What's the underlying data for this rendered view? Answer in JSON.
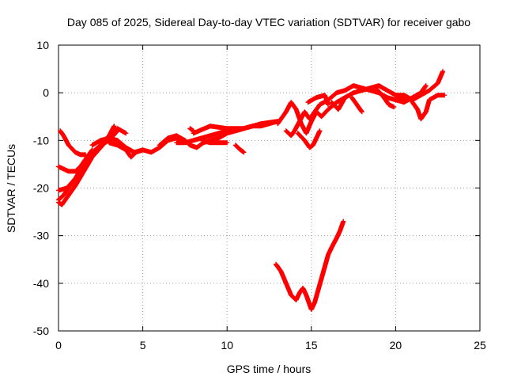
{
  "chart_data": {
    "type": "scatter",
    "title": "Day 085 of 2025, Sidereal Day-to-day VTEC variation (SDTVAR) for receiver gabo",
    "xlabel": "GPS time / hours",
    "ylabel": "SDTVAR / TECUs",
    "xlim": [
      0,
      25
    ],
    "ylim": [
      -50,
      10
    ],
    "xticks": [
      "0",
      "5",
      "10",
      "15",
      "20",
      "25"
    ],
    "yticks": [
      "10",
      "0",
      "-10",
      "-20",
      "-30",
      "-40",
      "-50"
    ],
    "grid": true,
    "marker": "plus",
    "marker_color": "#ff0000",
    "series": [
      {
        "name": "",
        "tracks": [
          [
            [
              0.0,
              -22.5
            ],
            [
              0.3,
              -21.5
            ],
            [
              0.6,
              -20.0
            ],
            [
              1.0,
              -18.0
            ],
            [
              1.5,
              -15.0
            ],
            [
              2.0,
              -12.5
            ],
            [
              2.5,
              -11.0
            ],
            [
              3.0,
              -10.0
            ],
            [
              3.5,
              -8.0
            ]
          ],
          [
            [
              0.0,
              -23.0
            ],
            [
              0.2,
              -23.5
            ],
            [
              0.5,
              -22.0
            ],
            [
              1.0,
              -19.5
            ],
            [
              1.5,
              -16.5
            ],
            [
              2.0,
              -13.5
            ],
            [
              2.5,
              -11.5
            ],
            [
              3.0,
              -9.5
            ],
            [
              3.5,
              -7.5
            ],
            [
              4.0,
              -8.5
            ]
          ],
          [
            [
              0.0,
              -20.5
            ],
            [
              0.5,
              -20.0
            ],
            [
              1.0,
              -18.0
            ],
            [
              1.5,
              -15.5
            ],
            [
              2.0,
              -13.0
            ],
            [
              2.5,
              -11.0
            ],
            [
              3.0,
              -9.0
            ],
            [
              3.3,
              -7.0
            ]
          ],
          [
            [
              0.0,
              -15.5
            ],
            [
              0.3,
              -16.0
            ],
            [
              0.6,
              -16.5
            ],
            [
              1.0,
              -16.5
            ],
            [
              1.3,
              -15.5
            ],
            [
              1.6,
              -14.0
            ],
            [
              2.0,
              -12.0
            ]
          ],
          [
            [
              0.1,
              -8.0
            ],
            [
              0.3,
              -9.0
            ],
            [
              0.6,
              -11.0
            ],
            [
              1.0,
              -12.5
            ],
            [
              1.3,
              -13.0
            ],
            [
              1.6,
              -13.0
            ]
          ],
          [
            [
              2.0,
              -11.0
            ],
            [
              2.5,
              -10.0
            ],
            [
              3.0,
              -9.5
            ],
            [
              3.5,
              -10.0
            ],
            [
              4.0,
              -11.5
            ],
            [
              4.5,
              -12.5
            ],
            [
              5.0,
              -12.0
            ],
            [
              5.5,
              -12.5
            ],
            [
              6.0,
              -11.5
            ],
            [
              6.5,
              -10.0
            ],
            [
              7.0,
              -9.5
            ],
            [
              7.5,
              -10.0
            ]
          ],
          [
            [
              3.0,
              -10.5
            ],
            [
              3.5,
              -11.0
            ],
            [
              4.0,
              -12.0
            ],
            [
              4.3,
              -13.5
            ],
            [
              4.6,
              -12.5
            ],
            [
              5.0,
              -12.0
            ]
          ],
          [
            [
              6.0,
              -11.0
            ],
            [
              6.5,
              -9.5
            ],
            [
              7.0,
              -9.0
            ],
            [
              7.5,
              -10.0
            ],
            [
              7.8,
              -11.0
            ],
            [
              8.2,
              -11.5
            ],
            [
              8.6,
              -10.5
            ],
            [
              9.0,
              -10.0
            ],
            [
              9.5,
              -9.5
            ],
            [
              10.0,
              -8.5
            ],
            [
              10.5,
              -8.0
            ],
            [
              11.0,
              -7.5
            ]
          ],
          [
            [
              7.0,
              -10.5
            ],
            [
              7.5,
              -10.5
            ],
            [
              8.0,
              -10.0
            ],
            [
              8.5,
              -9.5
            ],
            [
              9.0,
              -9.0
            ],
            [
              9.5,
              -8.5
            ],
            [
              10.0,
              -8.0
            ],
            [
              10.5,
              -8.0
            ],
            [
              11.0,
              -7.5
            ],
            [
              11.5,
              -7.0
            ],
            [
              12.0,
              -7.0
            ],
            [
              12.5,
              -6.5
            ],
            [
              13.0,
              -6.0
            ]
          ],
          [
            [
              8.0,
              -8.5
            ],
            [
              9.0,
              -7.0
            ],
            [
              10.0,
              -7.5
            ],
            [
              11.0,
              -7.5
            ],
            [
              12.0,
              -6.5
            ],
            [
              13.0,
              -6.0
            ]
          ],
          [
            [
              8.5,
              -10.0
            ],
            [
              9.0,
              -10.5
            ],
            [
              9.5,
              -10.5
            ],
            [
              10.0,
              -10.5
            ]
          ],
          [
            [
              10.5,
              -11.0
            ],
            [
              10.8,
              -12.0
            ],
            [
              11.0,
              -12.5
            ]
          ],
          [
            [
              7.8,
              -7.5
            ],
            [
              8.0,
              -8.0
            ]
          ],
          [
            [
              13.0,
              -6.5
            ],
            [
              13.5,
              -4.0
            ],
            [
              13.8,
              -2.0
            ],
            [
              14.1,
              -3.5
            ],
            [
              14.4,
              -6.5
            ],
            [
              14.7,
              -8.5
            ],
            [
              15.0,
              -6.0
            ],
            [
              15.3,
              -4.0
            ],
            [
              15.6,
              -5.0
            ],
            [
              16.0,
              -3.5
            ],
            [
              16.5,
              -2.0
            ],
            [
              17.0,
              -1.0
            ],
            [
              17.5,
              0.0
            ],
            [
              18.0,
              0.5
            ],
            [
              18.5,
              1.0
            ],
            [
              19.0,
              1.5
            ],
            [
              19.5,
              0.5
            ],
            [
              20.0,
              -0.5
            ],
            [
              20.5,
              -1.0
            ]
          ],
          [
            [
              13.5,
              -8.0
            ],
            [
              13.8,
              -9.0
            ],
            [
              14.0,
              -8.0
            ],
            [
              14.3,
              -6.0
            ],
            [
              14.6,
              -4.0
            ],
            [
              14.9,
              -5.5
            ],
            [
              15.2,
              -4.0
            ],
            [
              15.5,
              -2.5
            ],
            [
              16.0,
              -1.5
            ],
            [
              16.5,
              0.0
            ],
            [
              17.0,
              0.5
            ],
            [
              17.5,
              1.5
            ],
            [
              18.0,
              1.0
            ],
            [
              18.5,
              0.5
            ],
            [
              19.0,
              0.0
            ],
            [
              19.5,
              -1.0
            ],
            [
              20.0,
              -1.5
            ],
            [
              20.5,
              -1.0
            ],
            [
              21.0,
              -1.5
            ]
          ],
          [
            [
              14.2,
              -8.5
            ],
            [
              14.6,
              -10.0
            ],
            [
              14.9,
              -11.5
            ],
            [
              15.1,
              -11.0
            ],
            [
              15.3,
              -9.5
            ],
            [
              15.5,
              -8.0
            ]
          ],
          [
            [
              14.8,
              -2.0
            ],
            [
              15.3,
              -1.0
            ],
            [
              15.8,
              -0.5
            ],
            [
              16.0,
              -2.5
            ]
          ],
          [
            [
              16.2,
              -2.0
            ],
            [
              16.6,
              -3.5
            ],
            [
              17.0,
              -1.0
            ]
          ],
          [
            [
              17.4,
              -1.0
            ],
            [
              17.7,
              -2.5
            ],
            [
              18.0,
              -4.0
            ]
          ],
          [
            [
              18.8,
              1.0
            ],
            [
              19.2,
              -0.5
            ],
            [
              19.6,
              -2.5
            ],
            [
              19.9,
              -3.0
            ]
          ],
          [
            [
              20.0,
              -0.5
            ],
            [
              20.5,
              -0.5
            ],
            [
              21.0,
              -1.5
            ],
            [
              21.5,
              -0.5
            ],
            [
              22.0,
              0.5
            ],
            [
              22.5,
              2.0
            ],
            [
              22.8,
              4.5
            ]
          ],
          [
            [
              20.0,
              -1.5
            ],
            [
              20.5,
              -2.0
            ],
            [
              21.0,
              -1.0
            ],
            [
              21.5,
              0.0
            ],
            [
              21.8,
              1.5
            ]
          ],
          [
            [
              21.0,
              -2.0
            ],
            [
              21.3,
              -3.5
            ],
            [
              21.5,
              -5.5
            ],
            [
              21.8,
              -4.0
            ],
            [
              22.0,
              -1.5
            ],
            [
              22.5,
              -0.5
            ],
            [
              22.9,
              -0.5
            ]
          ],
          [
            [
              12.9,
              -36.0
            ],
            [
              13.2,
              -37.5
            ],
            [
              13.5,
              -40.0
            ],
            [
              13.8,
              -42.5
            ],
            [
              14.1,
              -43.5
            ],
            [
              14.3,
              -42.0
            ],
            [
              14.5,
              -41.0
            ],
            [
              14.7,
              -42.5
            ],
            [
              14.9,
              -44.5
            ],
            [
              15.0,
              -45.5
            ],
            [
              15.2,
              -44.0
            ],
            [
              15.4,
              -41.5
            ],
            [
              15.6,
              -39.0
            ],
            [
              15.8,
              -36.5
            ],
            [
              16.0,
              -34.0
            ],
            [
              16.2,
              -32.5
            ],
            [
              16.5,
              -30.5
            ],
            [
              16.7,
              -29.0
            ],
            [
              16.9,
              -27.0
            ]
          ]
        ]
      }
    ]
  }
}
